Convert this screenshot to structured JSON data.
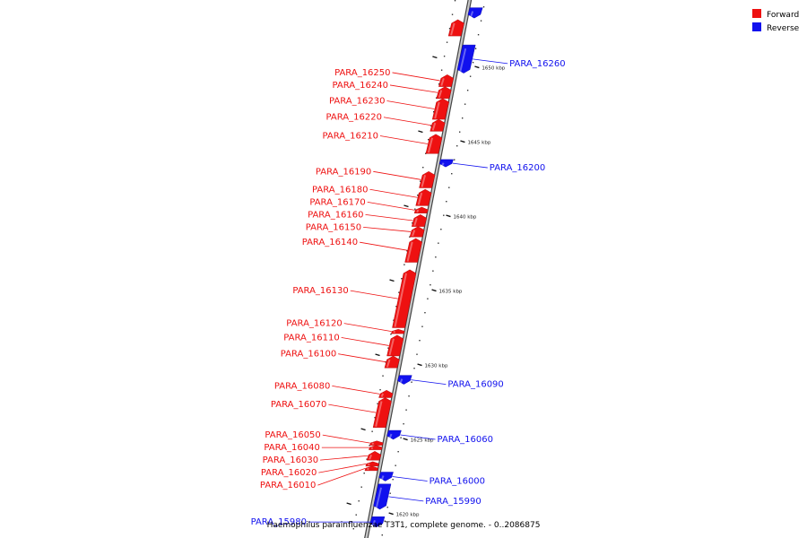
{
  "caption": "Haemophilus parainfluenzae T3T1, complete genome. - 0..2086875",
  "legend": [
    {
      "label": "Forward",
      "color": "#ee1111"
    },
    {
      "label": "Reverse",
      "color": "#1111ee"
    }
  ],
  "ticks": [
    {
      "kbp": 1650,
      "label": "1650 kbp"
    },
    {
      "kbp": 1645,
      "label": "1645 kbp"
    },
    {
      "kbp": 1640,
      "label": "1640 kbp"
    },
    {
      "kbp": 1635,
      "label": "1635 kbp"
    },
    {
      "kbp": 1630,
      "label": "1630 kbp"
    },
    {
      "kbp": 1625,
      "label": "1625 kbp"
    },
    {
      "kbp": 1620,
      "label": "1620 kbp"
    }
  ],
  "genes": [
    {
      "name": "",
      "strand": "forward",
      "start_kbp": 1652.1,
      "end_kbp": 1653.2
    },
    {
      "name": "",
      "strand": "reverse",
      "start_kbp": 1653.3,
      "end_kbp": 1654.0
    },
    {
      "name": "PARA_16260",
      "strand": "reverse",
      "start_kbp": 1649.6,
      "end_kbp": 1651.5
    },
    {
      "name": "PARA_16250",
      "strand": "forward",
      "start_kbp": 1648.7,
      "end_kbp": 1649.5
    },
    {
      "name": "PARA_16240",
      "strand": "forward",
      "start_kbp": 1647.9,
      "end_kbp": 1648.7
    },
    {
      "name": "PARA_16230",
      "strand": "forward",
      "start_kbp": 1646.5,
      "end_kbp": 1647.9
    },
    {
      "name": "PARA_16220",
      "strand": "forward",
      "start_kbp": 1645.7,
      "end_kbp": 1646.5
    },
    {
      "name": "PARA_16210",
      "strand": "forward",
      "start_kbp": 1644.2,
      "end_kbp": 1645.5
    },
    {
      "name": "PARA_16200",
      "strand": "reverse",
      "start_kbp": 1643.3,
      "end_kbp": 1643.8
    },
    {
      "name": "PARA_16190",
      "strand": "forward",
      "start_kbp": 1641.9,
      "end_kbp": 1643.0
    },
    {
      "name": "PARA_16180",
      "strand": "forward",
      "start_kbp": 1640.7,
      "end_kbp": 1641.8
    },
    {
      "name": "PARA_16170",
      "strand": "forward",
      "start_kbp": 1640.2,
      "end_kbp": 1640.6
    },
    {
      "name": "PARA_16160",
      "strand": "forward",
      "start_kbp": 1639.3,
      "end_kbp": 1640.1
    },
    {
      "name": "PARA_16150",
      "strand": "forward",
      "start_kbp": 1638.6,
      "end_kbp": 1639.3
    },
    {
      "name": "PARA_16140",
      "strand": "forward",
      "start_kbp": 1636.9,
      "end_kbp": 1638.5
    },
    {
      "name": "PARA_16130",
      "strand": "forward",
      "start_kbp": 1632.5,
      "end_kbp": 1636.4
    },
    {
      "name": "PARA_16120",
      "strand": "forward",
      "start_kbp": 1632.1,
      "end_kbp": 1632.4
    },
    {
      "name": "PARA_16110",
      "strand": "forward",
      "start_kbp": 1630.6,
      "end_kbp": 1632.0
    },
    {
      "name": "PARA_16100",
      "strand": "forward",
      "start_kbp": 1629.8,
      "end_kbp": 1630.6
    },
    {
      "name": "PARA_16090",
      "strand": "reverse",
      "start_kbp": 1628.7,
      "end_kbp": 1629.3
    },
    {
      "name": "PARA_16080",
      "strand": "forward",
      "start_kbp": 1627.8,
      "end_kbp": 1628.3
    },
    {
      "name": "PARA_16070",
      "strand": "forward",
      "start_kbp": 1625.8,
      "end_kbp": 1627.8
    },
    {
      "name": "PARA_16060",
      "strand": "reverse",
      "start_kbp": 1625.0,
      "end_kbp": 1625.6
    },
    {
      "name": "PARA_16050",
      "strand": "forward",
      "start_kbp": 1624.6,
      "end_kbp": 1624.9
    },
    {
      "name": "PARA_16040",
      "strand": "forward",
      "start_kbp": 1624.3,
      "end_kbp": 1624.6
    },
    {
      "name": "PARA_16030",
      "strand": "forward",
      "start_kbp": 1623.6,
      "end_kbp": 1624.2
    },
    {
      "name": "PARA_16020",
      "strand": "forward",
      "start_kbp": 1623.2,
      "end_kbp": 1623.5
    },
    {
      "name": "PARA_16010",
      "strand": "forward",
      "start_kbp": 1622.9,
      "end_kbp": 1623.2
    },
    {
      "name": "PARA_16000",
      "strand": "reverse",
      "start_kbp": 1622.2,
      "end_kbp": 1622.8
    },
    {
      "name": "PARA_15990",
      "strand": "reverse",
      "start_kbp": 1620.3,
      "end_kbp": 1622.0
    },
    {
      "name": "PARA_15980",
      "strand": "reverse",
      "start_kbp": 1619.1,
      "end_kbp": 1619.8
    }
  ]
}
